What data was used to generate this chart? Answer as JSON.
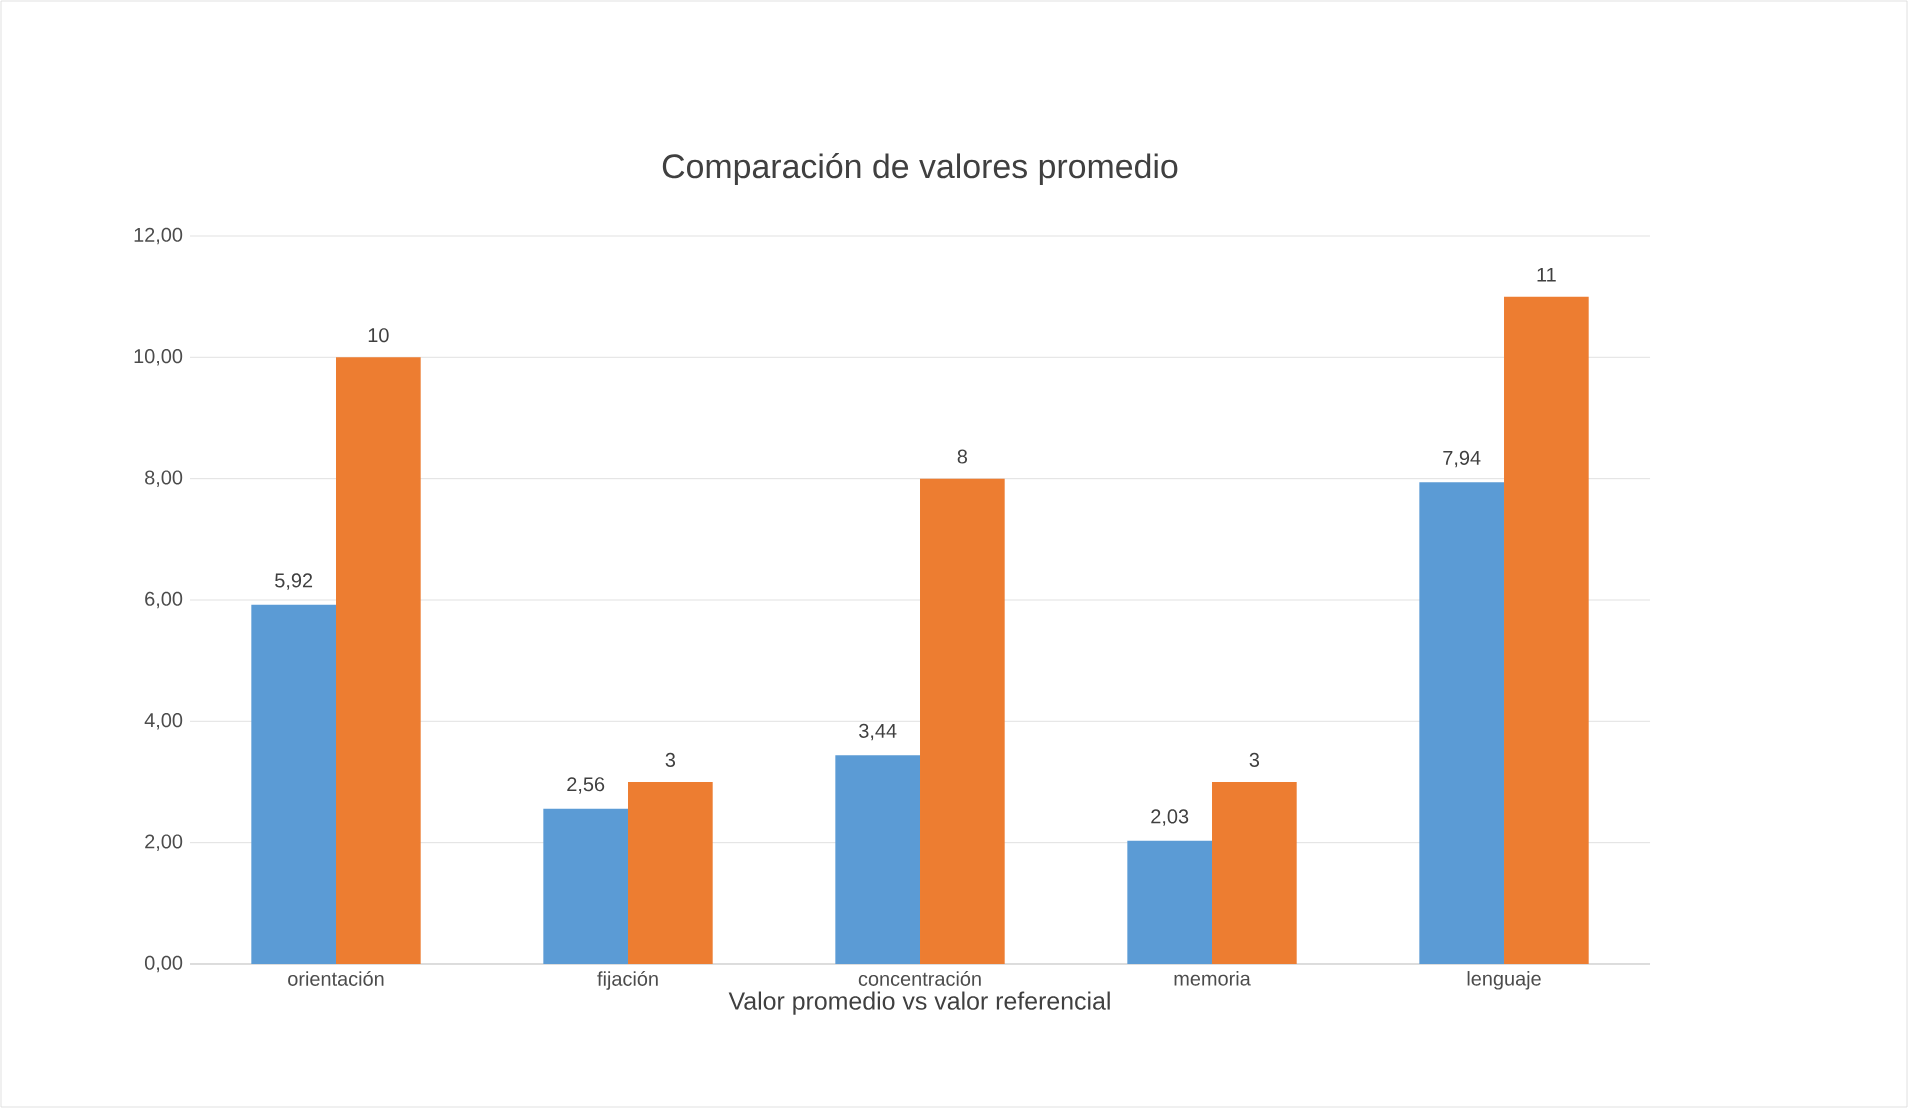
{
  "chart_data": {
    "type": "bar",
    "title": "Comparación de valores promedio",
    "xlabel": "Valor promedio vs valor referencial",
    "categories": [
      "orientación",
      "fijación",
      "concentración",
      "memoria",
      "lenguaje"
    ],
    "series": [
      {
        "color": "#5b9bd5",
        "values": [
          5.92,
          2.56,
          3.44,
          2.03,
          7.94
        ],
        "value_labels": [
          "5,92",
          "2,56",
          "3,44",
          "2,03",
          "7,94"
        ]
      },
      {
        "color": "#ed7d31",
        "values": [
          10,
          3,
          8,
          3,
          11
        ],
        "value_labels": [
          "10",
          "3",
          "8",
          "3",
          "11"
        ]
      }
    ],
    "ylim": [
      0,
      12
    ],
    "yticks": [
      {
        "value": 0,
        "label": "0,00"
      },
      {
        "value": 2,
        "label": "2,00"
      },
      {
        "value": 4,
        "label": "4,00"
      },
      {
        "value": 6,
        "label": "6,00"
      },
      {
        "value": 8,
        "label": "8,00"
      },
      {
        "value": 10,
        "label": "10,00"
      },
      {
        "value": 12,
        "label": "12,00"
      }
    ],
    "grid": "y"
  }
}
